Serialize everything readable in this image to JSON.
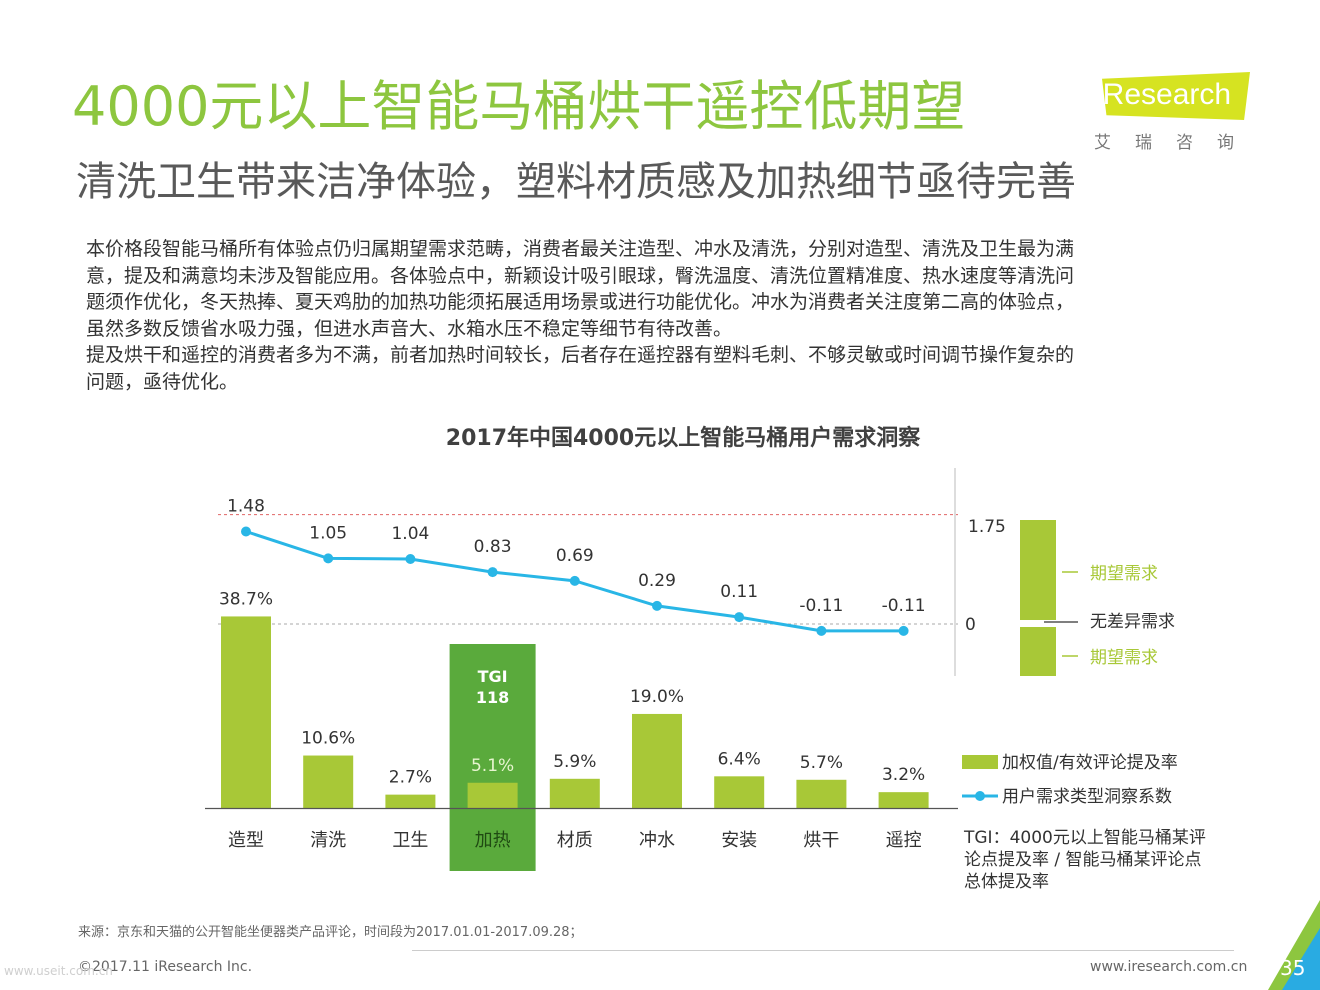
{
  "title": "4000元以上智能马桶烘干遥控低期望",
  "subtitle": "清洗卫生带来洁净体验，塑料材质感及加热细节亟待完善",
  "logo": {
    "brand": "iResearch",
    "cn": "艾瑞咨询"
  },
  "body_lines": [
    "本价格段智能马桶所有体验点仍归属期望需求范畴，消费者最关注造型、冲水及清洗，分别对造型、清洗及卫生最为满",
    "意，提及和满意均未涉及智能应用。各体验点中，新颖设计吸引眼球，臀洗温度、清洗位置精准度、热水速度等清洗问",
    "题须作优化，冬天热捧、夏天鸡肋的加热功能须拓展适用场景或进行功能优化。冲水为消费者关注度第二高的体验点，",
    "虽然多数反馈省水吸力强，但进水声音大、水箱水压不稳定等细节有待改善。",
    "提及烘干和遥控的消费者多为不满，前者加热时间较长，后者存在遥控器有塑料毛刺、不够灵敏或时间调节操作复杂的",
    "问题，亟待优化。"
  ],
  "chart_data": {
    "type": "bar",
    "title": "2017年中国4000元以上智能马桶用户需求洞察",
    "categories": [
      "造型",
      "清洗",
      "卫生",
      "加热",
      "材质",
      "冲水",
      "安装",
      "烘干",
      "遥控"
    ],
    "series": [
      {
        "name": "加权值/有效评论提及率",
        "type": "bar",
        "values": [
          38.7,
          10.6,
          2.7,
          5.1,
          5.9,
          19.0,
          6.4,
          5.7,
          3.2
        ],
        "labels": [
          "38.7%",
          "10.6%",
          "2.7%",
          "5.1%",
          "5.9%",
          "19.0%",
          "6.4%",
          "5.7%",
          "3.2%"
        ],
        "color": "#a8c837"
      },
      {
        "name": "用户需求类型洞察系数",
        "type": "line",
        "values": [
          1.48,
          1.05,
          1.04,
          0.83,
          0.69,
          0.29,
          0.11,
          -0.11,
          -0.11
        ],
        "labels": [
          "1.48",
          "1.05",
          "1.04",
          "0.83",
          "0.69",
          "0.29",
          "0.11",
          "-0.11",
          "-0.11"
        ],
        "color": "#29b6e6"
      }
    ],
    "reference_lines": {
      "red_dashed_value": 1.75,
      "grey_dashed_value": 0
    },
    "highlight": {
      "category": "加热",
      "label": "TGI",
      "value": "118",
      "color": "#5aaa3c"
    },
    "scale_legend": {
      "top_value": "1.75",
      "zero_value": "0",
      "upper": "期望需求",
      "middle": "无差异需求",
      "lower": "期望需求"
    },
    "tgi_note": "TGI：4000元以上智能马桶某评论点提及率 / 智能马桶某评论点总体提及率",
    "tgi_note_lines": [
      "TGI：4000元以上智能马桶某评",
      "论点提及率 / 智能马桶某评论点",
      "总体提及率"
    ]
  },
  "colors": {
    "title_green": "#8dc63f",
    "bar_green": "#a8c837",
    "highlight_green": "#5aaa3c",
    "line_blue": "#29b6e6",
    "red_dashed": "#e06666"
  },
  "source": "来源：京东和天猫的公开智能坐便器类产品评论，时间段为2017.01.01-2017.09.28；",
  "copyright": "©2017.11 iResearch Inc.",
  "website": "www.iresearch.com.cn",
  "page_number": "35",
  "watermark": "www.useit.com.cn"
}
